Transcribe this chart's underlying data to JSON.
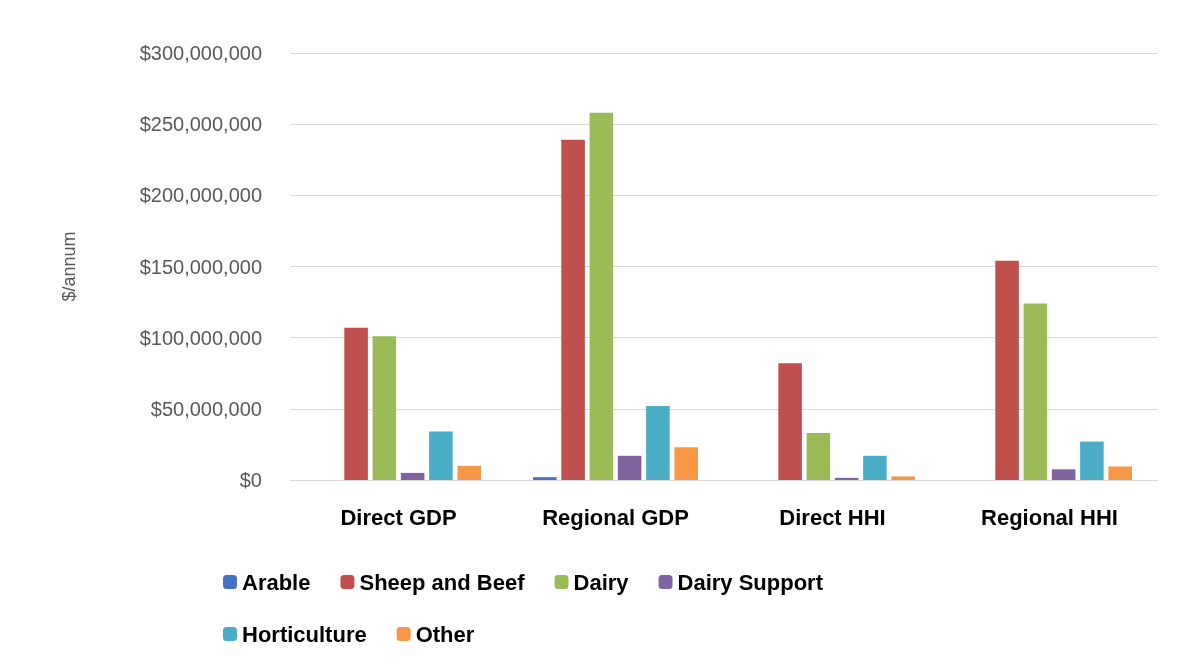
{
  "chart_data": {
    "type": "bar",
    "ylabel": "$/annum",
    "categories": [
      "Direct GDP",
      "Regional GDP",
      "Direct HHI",
      "Regional HHI"
    ],
    "series": [
      {
        "name": "Arable",
        "color": "#4472c4",
        "values": [
          0,
          2000000,
          0,
          0
        ]
      },
      {
        "name": "Sheep and Beef",
        "color": "#c0504d",
        "values": [
          107000000,
          239000000,
          82000000,
          154000000
        ]
      },
      {
        "name": "Dairy",
        "color": "#9bbb59",
        "values": [
          101000000,
          258000000,
          33000000,
          124000000
        ]
      },
      {
        "name": "Dairy Support",
        "color": "#8064a2",
        "values": [
          5000000,
          17000000,
          1500000,
          7500000
        ]
      },
      {
        "name": "Horticulture",
        "color": "#4bacc6",
        "values": [
          34000000,
          52000000,
          17000000,
          27000000
        ]
      },
      {
        "name": "Other",
        "color": "#f79646",
        "values": [
          10000000,
          23000000,
          2500000,
          9500000
        ]
      }
    ],
    "ylim": [
      0,
      300000000
    ],
    "yticks": [
      {
        "value": 0,
        "label": "$0"
      },
      {
        "value": 50000000,
        "label": "$50,000,000"
      },
      {
        "value": 100000000,
        "label": "$100,000,000"
      },
      {
        "value": 150000000,
        "label": "$150,000,000"
      },
      {
        "value": 200000000,
        "label": "$200,000,000"
      },
      {
        "value": 250000000,
        "label": "$250,000,000"
      },
      {
        "value": 300000000,
        "label": "$300,000,000"
      }
    ],
    "grid": "y",
    "legend": "bottom"
  }
}
